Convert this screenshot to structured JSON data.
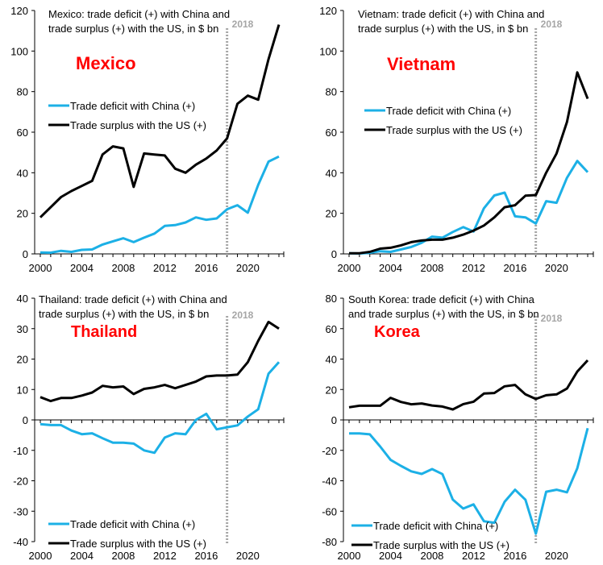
{
  "chart_data": [
    {
      "type": "line",
      "id": "mexico",
      "country_label": "Mexico",
      "title": "Mexico: trade deficit (+) with China and trade surplus (+) with the US, in $ bn",
      "title_lines": [
        "Mexico: trade deficit (+) with China and",
        "trade surplus (+) with the US, in $ bn"
      ],
      "xlabel": "",
      "ylabel": "",
      "x": [
        2000,
        2001,
        2002,
        2003,
        2004,
        2005,
        2006,
        2007,
        2008,
        2009,
        2010,
        2011,
        2012,
        2013,
        2014,
        2015,
        2016,
        2017,
        2018,
        2019,
        2020,
        2021,
        2022,
        2023
      ],
      "x_ticks": [
        "2000",
        "2004",
        "2008",
        "2012",
        "2016",
        "2020"
      ],
      "ylim": [
        0,
        120
      ],
      "y_ticks": [
        0,
        20,
        40,
        60,
        80,
        100,
        120
      ],
      "marker_year": 2018,
      "marker_label": "2018",
      "legend_position": "middle-left",
      "series": [
        {
          "name": "Trade deficit with China (+)",
          "color": "#1cb0e6",
          "values": [
            0.7,
            0.6,
            1.5,
            1,
            2,
            2.2,
            4.6,
            6.2,
            7.7,
            5.8,
            8,
            10,
            13.8,
            14.2,
            15.5,
            18,
            16.8,
            17.5,
            22,
            24,
            20.3,
            34,
            45.5,
            48
          ]
        },
        {
          "name": "Trade surplus with the US (+)",
          "color": "#000000",
          "values": [
            18,
            23,
            28,
            31,
            33.5,
            36,
            49,
            53,
            52,
            33,
            49.5,
            49,
            48.5,
            42,
            40,
            44,
            47,
            51,
            57,
            74,
            78,
            76,
            96,
            113
          ]
        }
      ]
    },
    {
      "type": "line",
      "id": "vietnam",
      "country_label": "Vietnam",
      "title": "Vietnam: trade deficit (+) with China and trade surplus (+) with the US, in $ bn",
      "title_lines": [
        "Vietnam: trade deficit (+) with China and",
        "trade surplus (+) with the US, in $ bn"
      ],
      "xlabel": "",
      "ylabel": "",
      "x": [
        2000,
        2001,
        2002,
        2003,
        2004,
        2005,
        2006,
        2007,
        2008,
        2009,
        2010,
        2011,
        2012,
        2013,
        2014,
        2015,
        2016,
        2017,
        2018,
        2019,
        2020,
        2021,
        2022,
        2023
      ],
      "x_ticks": [
        "2000",
        "2004",
        "2008",
        "2012",
        "2016",
        "2020"
      ],
      "ylim": [
        0,
        120
      ],
      "y_ticks": [
        0,
        20,
        40,
        60,
        80,
        100,
        120
      ],
      "marker_year": 2018,
      "marker_label": "2018",
      "legend_position": "middle-left",
      "series": [
        {
          "name": "Trade deficit with China (+)",
          "color": "#1cb0e6",
          "values": [
            0.3,
            0.2,
            0.5,
            1.3,
            1,
            2.2,
            3.4,
            5.5,
            8.5,
            8,
            10.8,
            13.2,
            11,
            22.5,
            28.8,
            30.2,
            18.5,
            18,
            15,
            26,
            25.2,
            37.5,
            45.8,
            40.3
          ]
        },
        {
          "name": "Trade surplus with the US (+)",
          "color": "#000000",
          "values": [
            0.3,
            0.3,
            1,
            2.6,
            3,
            4.2,
            5.8,
            6.6,
            7,
            7,
            8,
            9.5,
            11.5,
            14,
            18,
            23,
            24,
            28.7,
            29,
            40,
            49.5,
            65,
            89.5,
            76.5
          ]
        }
      ]
    },
    {
      "type": "line",
      "id": "thailand",
      "country_label": "Thailand",
      "title": "Thailand: trade deficit (+) with China and trade surplus (+) with the US, in $ bn",
      "title_lines": [
        "Thailand: trade deficit (+) with China and",
        "trade surplus (+) with the US, in $ bn"
      ],
      "xlabel": "",
      "ylabel": "",
      "x": [
        2000,
        2001,
        2002,
        2003,
        2004,
        2005,
        2006,
        2007,
        2008,
        2009,
        2010,
        2011,
        2012,
        2013,
        2014,
        2015,
        2016,
        2017,
        2018,
        2019,
        2020,
        2021,
        2022,
        2023
      ],
      "x_ticks": [
        "2000",
        "2004",
        "2008",
        "2012",
        "2016",
        "2020"
      ],
      "ylim": [
        -40,
        40
      ],
      "y_ticks": [
        -40,
        -30,
        -20,
        -10,
        0,
        10,
        20,
        30,
        40
      ],
      "marker_year": 2018,
      "marker_label": "2018",
      "legend_position": "bottom-left",
      "series": [
        {
          "name": "Trade deficit with China (+)",
          "color": "#1cb0e6",
          "values": [
            -1.4,
            -1.7,
            -1.7,
            -3.5,
            -4.7,
            -4.4,
            -6,
            -7.5,
            -7.5,
            -7.8,
            -10,
            -10.8,
            -5.8,
            -4.4,
            -4.7,
            0,
            2,
            -3.1,
            -2.4,
            -1.8,
            1.1,
            3.5,
            15.2,
            19
          ]
        },
        {
          "name": "Trade surplus with the US (+)",
          "color": "#000000",
          "values": [
            7.5,
            6.2,
            7.2,
            7.2,
            8,
            9,
            11.2,
            10.7,
            11,
            8.5,
            10.2,
            10.7,
            11.5,
            10.4,
            11.5,
            12.6,
            14.3,
            14.6,
            14.6,
            14.9,
            19,
            26,
            32.2,
            30
          ]
        }
      ]
    },
    {
      "type": "line",
      "id": "korea",
      "country_label": "Korea",
      "title": "South Korea: trade deficit (+) with China and trade surplus (+) with the US, in $ bn",
      "title_lines": [
        "South Korea: trade deficit (+) with China",
        "and trade surplus (+) with the US, in $ bn"
      ],
      "xlabel": "",
      "ylabel": "",
      "x": [
        2000,
        2001,
        2002,
        2003,
        2004,
        2005,
        2006,
        2007,
        2008,
        2009,
        2010,
        2011,
        2012,
        2013,
        2014,
        2015,
        2016,
        2017,
        2018,
        2019,
        2020,
        2021,
        2022,
        2023
      ],
      "x_ticks": [
        "2000",
        "2004",
        "2008",
        "2012",
        "2016",
        "2020"
      ],
      "ylim": [
        -80,
        80
      ],
      "y_ticks": [
        -80,
        -60,
        -40,
        -20,
        0,
        20,
        40,
        60,
        80
      ],
      "marker_year": 2018,
      "marker_label": "2018",
      "legend_position": "bottom-left",
      "series": [
        {
          "name": "Trade deficit with China (+)",
          "color": "#1cb0e6",
          "values": [
            -8.9,
            -8.9,
            -9.5,
            -17.5,
            -26.3,
            -30.2,
            -33.8,
            -35.5,
            -32.3,
            -35.6,
            -52.4,
            -58.3,
            -55.5,
            -66.6,
            -67.6,
            -53.8,
            -45.9,
            -52.5,
            -74.8,
            -47.2,
            -45.9,
            -47.6,
            -31.8,
            -5.4
          ]
        },
        {
          "name": "Trade surplus with the US (+)",
          "color": "#000000",
          "values": [
            8.3,
            9.3,
            9.3,
            9.3,
            14.5,
            11.8,
            10.3,
            10.8,
            9.5,
            8.8,
            6.9,
            10.4,
            12,
            17.3,
            17.7,
            22.1,
            23,
            16.8,
            13.8,
            16.2,
            16.8,
            20.6,
            31.8,
            39.2
          ]
        }
      ]
    }
  ],
  "colors": {
    "country_label": "#ff0000",
    "marker_line": "#a6a6a6",
    "axis": "#000000",
    "text": "#000000"
  }
}
